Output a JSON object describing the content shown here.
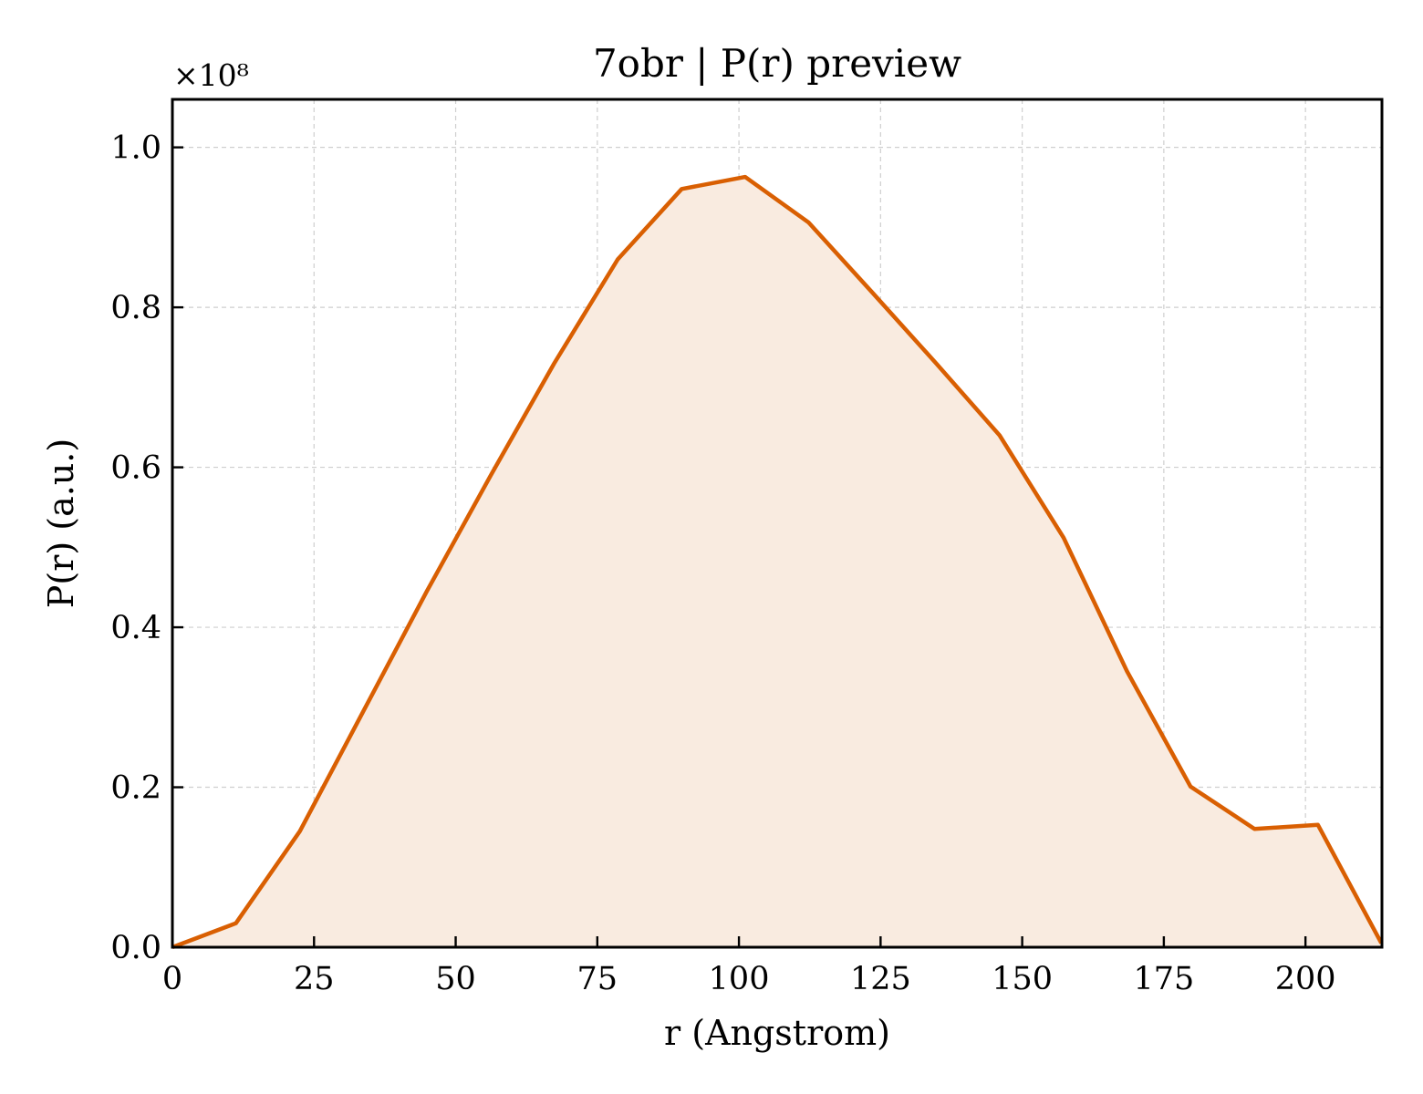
{
  "chart_data": {
    "type": "area",
    "title": "7obr | P(r) preview",
    "xlabel": "r (Angstrom)",
    "ylabel": "P(r) (a.u.)",
    "y_offset_label": "×10⁸",
    "xlim": [
      0,
      213.5
    ],
    "ylim": [
      0,
      1.06
    ],
    "x_ticks": [
      0,
      25,
      50,
      75,
      100,
      125,
      150,
      175,
      200
    ],
    "y_ticks": [
      0.0,
      0.2,
      0.4,
      0.6,
      0.8,
      1.0
    ],
    "x_tick_labels": [
      "0",
      "25",
      "50",
      "75",
      "100",
      "125",
      "150",
      "175",
      "200"
    ],
    "y_tick_labels": [
      "0.0",
      "0.2",
      "0.4",
      "0.6",
      "0.8",
      "1.0"
    ],
    "grid": true,
    "series": [
      {
        "color": "#d95f02",
        "fill_color": "#f9ebe0",
        "x": [
          0,
          11.2,
          22.5,
          33.7,
          44.9,
          56.2,
          67.4,
          78.6,
          89.9,
          101.1,
          112.3,
          123.6,
          134.8,
          146.0,
          157.3,
          168.5,
          179.7,
          191.0,
          202.2,
          213.4
        ],
        "y": [
          0.0,
          0.03,
          0.145,
          0.295,
          0.445,
          0.59,
          0.73,
          0.86,
          0.948,
          0.963,
          0.906,
          0.818,
          0.73,
          0.64,
          0.512,
          0.345,
          0.201,
          0.148,
          0.153,
          0.005
        ]
      }
    ]
  }
}
